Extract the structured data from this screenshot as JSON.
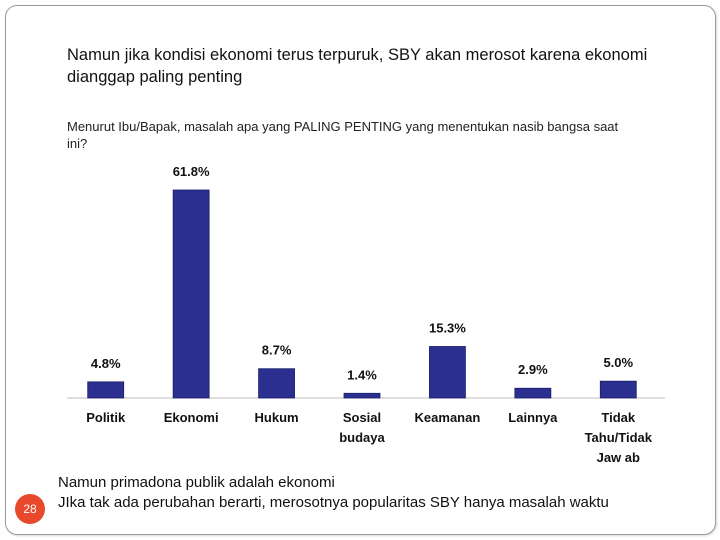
{
  "slide": {
    "title": "Namun jika kondisi ekonomi terus terpuruk, SBY akan merosot karena ekonomi dianggap paling penting",
    "subtitle": "Menurut Ibu/Bapak, masalah apa yang PALING PENTING yang menentukan nasib bangsa saat ini?",
    "footer_line1": "Namun primadona publik adalah  ekonomi",
    "footer_line2": "JIka tak ada perubahan berarti, merosotnya popularitas SBY hanya masalah waktu",
    "number": "28",
    "accent_color": "#e8492a"
  },
  "chart_data": {
    "type": "bar",
    "categories": [
      [
        "Politik"
      ],
      [
        "Ekonomi"
      ],
      [
        "Hukum"
      ],
      [
        "Sosial",
        "budaya"
      ],
      [
        "Keamanan"
      ],
      [
        "Lainnya"
      ],
      [
        "Tidak",
        "Tahu/Tidak",
        "Jaw ab"
      ]
    ],
    "values": [
      4.8,
      61.8,
      8.7,
      1.4,
      15.3,
      2.9,
      5.0
    ],
    "value_labels": [
      "4.8%",
      "61.8%",
      "8.7%",
      "1.4%",
      "15.3%",
      "2.9%",
      "5.0%"
    ],
    "bar_color": "#2b2f8f",
    "ylim": [
      0,
      65
    ],
    "grid": false,
    "legend": "none"
  }
}
